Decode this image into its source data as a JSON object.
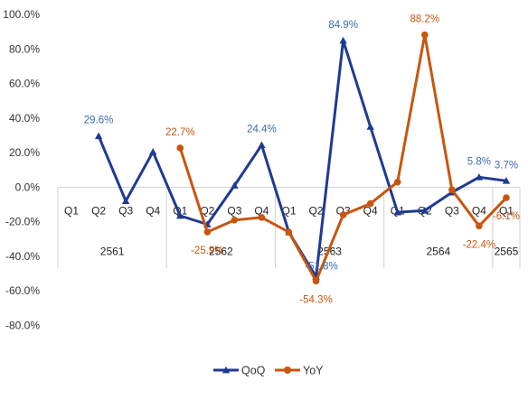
{
  "chart_data": {
    "type": "line",
    "title": "",
    "xlabel": "",
    "ylabel": "",
    "ylim": [
      -80,
      100
    ],
    "y_ticks": [
      "100.0%",
      "80.0%",
      "60.0%",
      "40.0%",
      "20.0%",
      "0.0%",
      "-20.0%",
      "-40.0%",
      "-60.0%",
      "-80.0%"
    ],
    "grid": false,
    "legend_position": "bottom",
    "categories": [
      "Q1",
      "Q2",
      "Q3",
      "Q4",
      "Q1",
      "Q2",
      "Q3",
      "Q4",
      "Q1",
      "Q2",
      "Q3",
      "Q4",
      "Q1",
      "Q2",
      "Q3",
      "Q4",
      "Q1"
    ],
    "years": [
      {
        "label": "2561",
        "start": 0,
        "end": 3
      },
      {
        "label": "2562",
        "start": 4,
        "end": 7
      },
      {
        "label": "2563",
        "start": 8,
        "end": 11
      },
      {
        "label": "2564",
        "start": 12,
        "end": 15
      },
      {
        "label": "2565",
        "start": 16,
        "end": 16
      }
    ],
    "series": [
      {
        "name": "QoQ",
        "color": "#1f3a93",
        "marker": "triangle",
        "values": [
          null,
          29.6,
          -8.0,
          20.5,
          -16.5,
          -21.5,
          1.0,
          24.4,
          -26.0,
          -51.8,
          84.9,
          35.0,
          -14.5,
          -13.5,
          -3.0,
          5.8,
          3.7
        ],
        "labels": {
          "1": "29.6%",
          "7": "24.4%",
          "9": "-51.8%",
          "10": "84.9%",
          "15": "5.8%",
          "16": "3.7%"
        }
      },
      {
        "name": "YoY",
        "color": "#c8560f",
        "marker": "circle",
        "values": [
          null,
          null,
          null,
          null,
          22.7,
          -25.9,
          -19.0,
          -17.5,
          -26.0,
          -54.3,
          -16.0,
          -9.5,
          3.0,
          88.2,
          -1.5,
          -22.4,
          -6.1
        ],
        "labels": {
          "4": "22.7%",
          "5": "-25.9%",
          "9": "-54.3%",
          "13": "88.2%",
          "15": "-22.4%",
          "16": "-6.1%"
        }
      }
    ]
  }
}
